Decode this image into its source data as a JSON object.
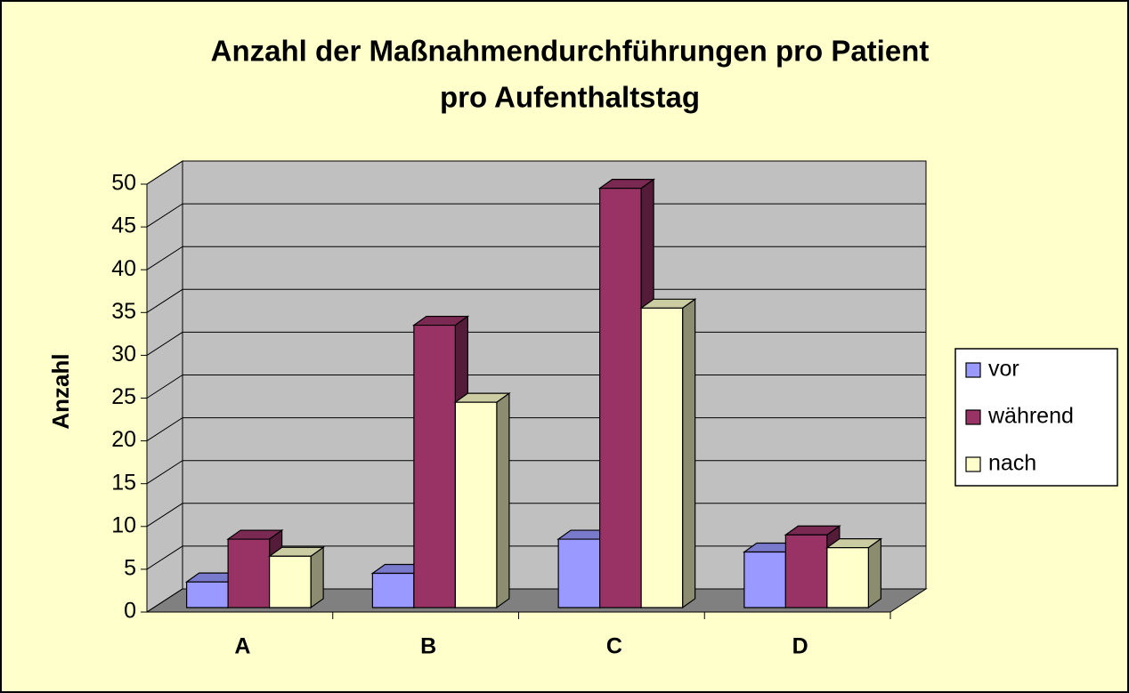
{
  "chart_data": {
    "type": "bar3d",
    "title": "Anzahl der Maßnahmendurchführungen pro Patient",
    "subtitle": "pro Aufenthaltstag",
    "y_label": "Anzahl",
    "categories": [
      "A",
      "B",
      "C",
      "D"
    ],
    "series": [
      {
        "name": "vor",
        "color": "#9999ff",
        "values": [
          3,
          4,
          8,
          6.5
        ]
      },
      {
        "name": "während",
        "color": "#993366",
        "values": [
          8,
          33,
          49,
          8.5
        ]
      },
      {
        "name": "nach",
        "color": "#ffffcc",
        "values": [
          6,
          24,
          35,
          7
        ]
      }
    ],
    "ylim": [
      0,
      50
    ],
    "yticks": [
      0,
      5,
      10,
      15,
      20,
      25,
      30,
      35,
      40,
      45,
      50
    ],
    "grid": true,
    "legend": "right"
  }
}
